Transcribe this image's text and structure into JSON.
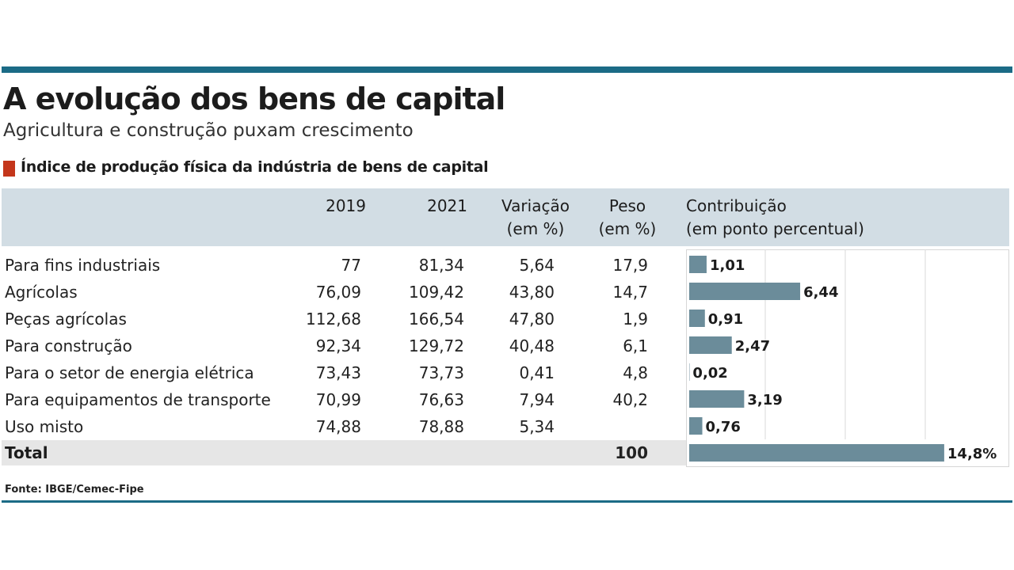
{
  "title": "A evolução dos bens de capital",
  "subtitle": "Agricultura e construção puxam crescimento",
  "section_title": "Índice de produção física da indústria de bens de capital",
  "colors": {
    "rule": "#1b6b86",
    "marker": "#c4361b",
    "bar": "#6b8c9a",
    "header_band": "#d2dde4",
    "total_band": "#e6e6e6"
  },
  "columns": {
    "y2019": "2019",
    "y2021": "2021",
    "var_line1": "Variação",
    "var_line2": "(em %)",
    "peso_line1": "Peso",
    "peso_line2": "(em %)",
    "contrib_line1": "Contribuição",
    "contrib_line2": "(em ponto percentual)"
  },
  "rows": [
    {
      "label": "Para fins industriais",
      "v2019": "77",
      "v2021": "81,34",
      "variacao": "5,64",
      "peso": "17,9",
      "contrib": "1,01"
    },
    {
      "label": "Agrícolas",
      "v2019": "76,09",
      "v2021": "109,42",
      "variacao": "43,80",
      "peso": "14,7",
      "contrib": "6,44"
    },
    {
      "label": "Peças agrícolas",
      "v2019": "112,68",
      "v2021": "166,54",
      "variacao": "47,80",
      "peso": "1,9",
      "contrib": "0,91"
    },
    {
      "label": "Para construção",
      "v2019": "92,34",
      "v2021": "129,72",
      "variacao": "40,48",
      "peso": "6,1",
      "contrib": "2,47"
    },
    {
      "label": "Para o setor de energia elétrica",
      "v2019": "73,43",
      "v2021": "73,73",
      "variacao": "0,41",
      "peso": "4,8",
      "contrib": "0,02"
    },
    {
      "label": "Para equipamentos de transporte",
      "v2019": "70,99",
      "v2021": "76,63",
      "variacao": "7,94",
      "peso": "40,2",
      "contrib": "3,19"
    },
    {
      "label": "Uso misto",
      "v2019": "74,88",
      "v2021": "78,88",
      "variacao": "5,34",
      "peso": "",
      "contrib": "0,76"
    }
  ],
  "total": {
    "label": "Total",
    "peso": "100",
    "contrib": "14,8%"
  },
  "source": "Fonte: IBGE/Cemec-Fipe",
  "chart_data": {
    "type": "bar",
    "orientation": "horizontal",
    "categories": [
      "Para fins industriais",
      "Agrícolas",
      "Peças agrícolas",
      "Para construção",
      "Para o setor de energia elétrica",
      "Para equipamentos de transporte",
      "Uso misto",
      "Total"
    ],
    "values": [
      1.01,
      6.44,
      0.91,
      2.47,
      0.02,
      3.19,
      0.76,
      14.8
    ],
    "value_labels": [
      "1,01",
      "6,44",
      "0,91",
      "2,47",
      "0,02",
      "3,19",
      "0,76",
      "14,8%"
    ],
    "ylabel": "Contribuição (em ponto percentual)",
    "xlim": [
      0,
      16
    ],
    "grid": true
  }
}
